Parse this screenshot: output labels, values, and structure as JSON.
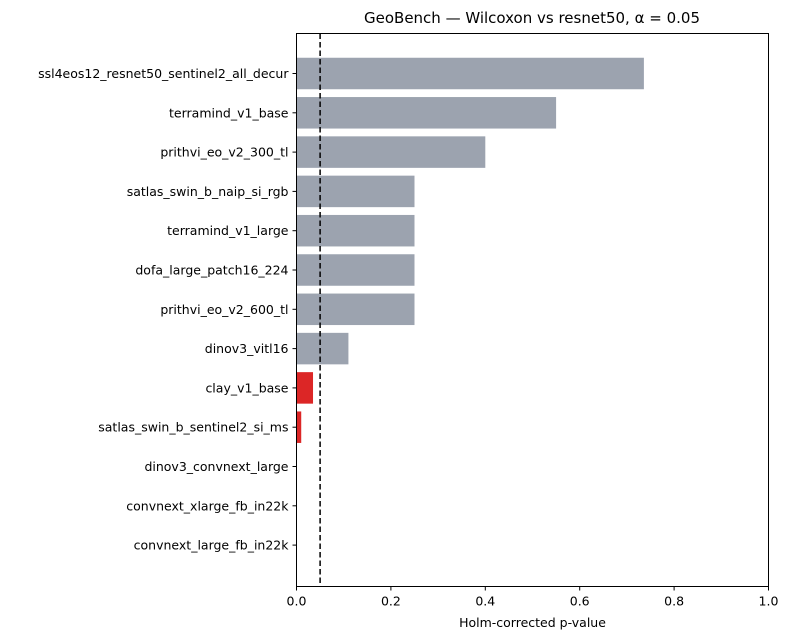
{
  "chart_data": {
    "type": "bar",
    "orientation": "horizontal",
    "title": "GeoBench — Wilcoxon vs resnet50, α = 0.05",
    "xlabel": "Holm-corrected p-value",
    "ylabel": "",
    "xlim": [
      0.0,
      1.0
    ],
    "xticks": [
      "0.0",
      "0.2",
      "0.4",
      "0.6",
      "0.8",
      "1.0"
    ],
    "alpha": 0.05,
    "grid": false,
    "colors": {
      "not_significant": "#9ca3af",
      "significant": "#dc2626",
      "threshold_line": "#000000"
    },
    "categories": [
      "ssl4eos12_resnet50_sentinel2_all_decur",
      "terramind_v1_base",
      "prithvi_eo_v2_300_tl",
      "satlas_swin_b_naip_si_rgb",
      "terramind_v1_large",
      "dofa_large_patch16_224",
      "prithvi_eo_v2_600_tl",
      "dinov3_vitl16",
      "clay_v1_base",
      "satlas_swin_b_sentinel2_si_ms",
      "dinov3_convnext_large",
      "convnext_xlarge_fb_in22k",
      "convnext_large_fb_in22k"
    ],
    "values": [
      0.736,
      0.55,
      0.4,
      0.25,
      0.25,
      0.25,
      0.25,
      0.11,
      0.035,
      0.01,
      0.0,
      0.0,
      0.0
    ]
  }
}
